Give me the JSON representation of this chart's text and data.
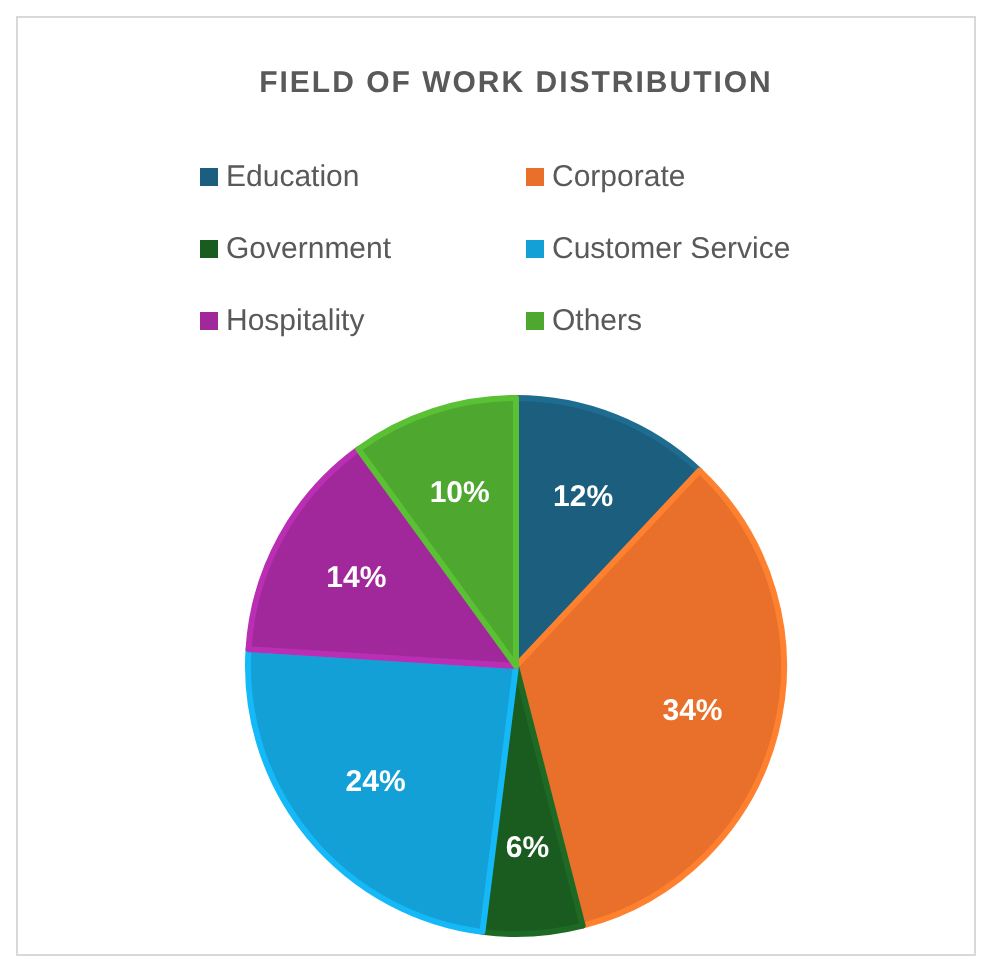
{
  "chart_data": {
    "type": "pie",
    "title": "FIELD OF WORK DISTRIBUTION",
    "categories": [
      "Education",
      "Corporate",
      "Government",
      "Customer Service",
      "Hospitality",
      "Others"
    ],
    "values": [
      12,
      34,
      6,
      24,
      14,
      10
    ],
    "value_labels": [
      "12%",
      "34%",
      "6%",
      "24%",
      "14%",
      "10%"
    ],
    "colors": [
      "#1b5e7e",
      "#e8702a",
      "#1a5c1f",
      "#12a0d6",
      "#a0289a",
      "#4ea72e"
    ],
    "legend": "top"
  }
}
